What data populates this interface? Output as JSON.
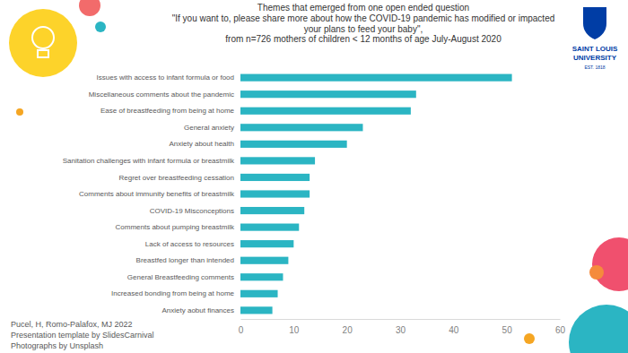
{
  "chart_data": {
    "type": "bar",
    "orientation": "horizontal",
    "title": "Themes that emerged from one open ended question",
    "subtitle": [
      "\"If you want to, please share more about how the COVID-19 pandemic has modified or impacted",
      "your plans to feed your baby\",",
      "from n=726  mothers of children < 12 months of age July-August 2020"
    ],
    "categories": [
      "Issues with access to infant formula or food",
      "Miscellaneous comments about the pandemic",
      "Ease of breastfeeding from being at home",
      "General anxiety",
      "Anxiety about health",
      "Sanitation challenges with infant formula or breastmilk",
      "Regret over breastfeeding cessation",
      "Comments about immunity benefits of breastmilk",
      "COVID-19 Misconceptions",
      "Comments about pumping breastmilk",
      "Lack of access to resources",
      "Breastfed longer than intended",
      "General Breastfeeding comments",
      "Increased bonding from being at home",
      "Anxiety aobut finances"
    ],
    "values": [
      51,
      33,
      32,
      23,
      20,
      14,
      13,
      13,
      12,
      11,
      10,
      9,
      8,
      7,
      6
    ],
    "color": "#2bb5c3",
    "xlim": [
      0,
      60
    ],
    "xticks": [
      0,
      10,
      20,
      30,
      40,
      50,
      60
    ],
    "grid": false,
    "annotations": [
      "Pucel, H, Romo-Palafox, MJ 2022",
      "Presentation template by SlidesCarnival",
      "Photographs by Unsplash",
      "SAINT LOUIS",
      "UNIVERSITY",
      "EST. 1818"
    ]
  }
}
